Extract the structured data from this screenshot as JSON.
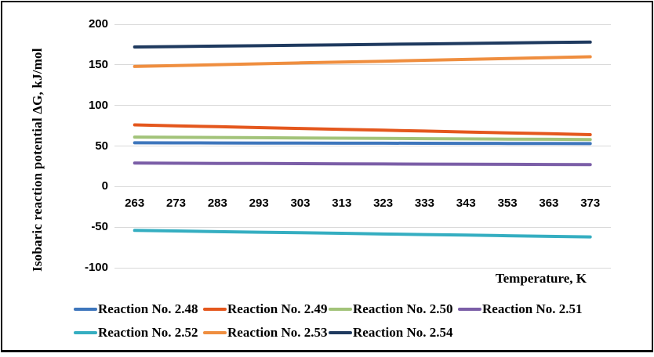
{
  "chart": {
    "y_axis_title": "Isobaric reaction potential ΔG, kJ/mol",
    "x_axis_title": "Temperature, K"
  },
  "chart_data": {
    "type": "line",
    "title": "",
    "xlabel": "Temperature, K",
    "ylabel": "Isobaric reaction potential ΔG, kJ/mol",
    "x": [
      263,
      273,
      283,
      293,
      303,
      313,
      323,
      333,
      343,
      353,
      363,
      373
    ],
    "yticks": [
      200,
      150,
      100,
      50,
      0,
      -50,
      -100
    ],
    "ylim": [
      -100,
      200
    ],
    "grid": true,
    "legend_position": "bottom",
    "gridline_color": "#d9d9d9",
    "series": [
      {
        "name": "Reaction No. 2.48",
        "color": "#3e76bc",
        "values": [
          54.0,
          53.9,
          53.8,
          53.7,
          53.6,
          53.5,
          53.5,
          53.4,
          53.3,
          53.2,
          53.1,
          53.0
        ]
      },
      {
        "name": "Reaction No. 2.49",
        "color": "#e4571d",
        "values": [
          76.0,
          74.9,
          73.8,
          72.7,
          71.6,
          70.5,
          69.5,
          68.4,
          67.3,
          66.2,
          65.1,
          64.0
        ]
      },
      {
        "name": "Reaction No. 2.50",
        "color": "#a2c379",
        "values": [
          61.0,
          60.7,
          60.5,
          60.2,
          59.9,
          59.6,
          59.4,
          59.1,
          58.8,
          58.5,
          58.3,
          58.0
        ]
      },
      {
        "name": "Reaction No. 2.51",
        "color": "#7b5ea7",
        "values": [
          29.0,
          28.8,
          28.6,
          28.5,
          28.3,
          28.1,
          27.9,
          27.7,
          27.5,
          27.4,
          27.2,
          27.0
        ]
      },
      {
        "name": "Reaction No. 2.52",
        "color": "#35aec1",
        "values": [
          -54.0,
          -54.7,
          -55.5,
          -56.2,
          -56.9,
          -57.6,
          -58.4,
          -59.1,
          -59.8,
          -60.5,
          -61.3,
          -62.0
        ]
      },
      {
        "name": "Reaction No. 2.53",
        "color": "#ef8e3f",
        "values": [
          148.0,
          149.1,
          150.2,
          151.3,
          152.4,
          153.5,
          154.5,
          155.6,
          156.7,
          157.8,
          158.9,
          160.0
        ]
      },
      {
        "name": "Reaction No. 2.54",
        "color": "#1f3a5f",
        "values": [
          172.0,
          172.5,
          173.1,
          173.6,
          174.2,
          174.7,
          175.3,
          175.8,
          176.4,
          176.9,
          177.5,
          178.0
        ]
      }
    ]
  }
}
